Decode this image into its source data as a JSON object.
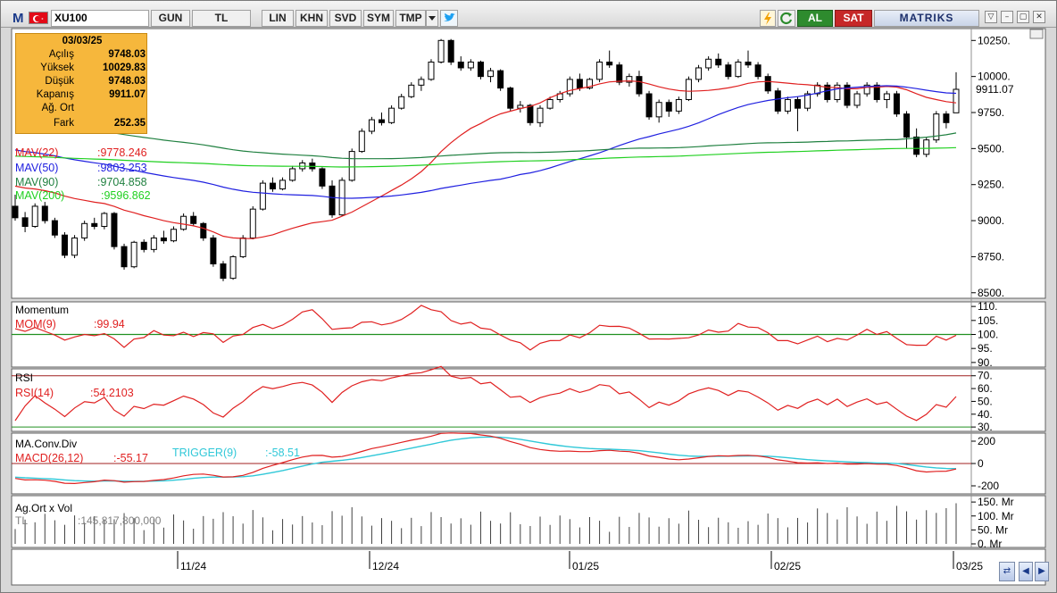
{
  "app": {
    "logo": "M",
    "symbol": "XU100"
  },
  "toolbar": {
    "period": "GUN",
    "currency": "TL",
    "scale": "LIN",
    "khn": "KHN",
    "svd": "SVD",
    "sym": "SYM",
    "tmp": "TMP",
    "buy": "AL",
    "sell": "SAT",
    "brand": "MATRIKS",
    "icons": [
      "flag-turkey-icon",
      "dropdown-arrow-icon",
      "twitter-icon",
      "lightning-icon",
      "refresh-icon",
      "window-menu-icon",
      "minimize-icon",
      "restore-icon",
      "close-icon"
    ]
  },
  "info_box": {
    "date": "03/03/25",
    "rows": [
      {
        "label": "Açılış",
        "value": "9748.03"
      },
      {
        "label": "Yüksek",
        "value": "10029.83"
      },
      {
        "label": "Düşük",
        "value": "9748.03"
      },
      {
        "label": "Kapanış",
        "value": "9911.07"
      },
      {
        "label": "Ağ. Ort",
        "value": ""
      },
      {
        "label": "Fark",
        "value": "252.35"
      }
    ]
  },
  "price_pane": {
    "indicators": [
      {
        "name": "MAV(22)",
        "value": ":9778.246",
        "color": "#e02020"
      },
      {
        "name": "MAV(50)",
        "value": ":9803.253",
        "color": "#2020e0"
      },
      {
        "name": "MAV(90)",
        "value": ":9704.858",
        "color": "#208040"
      },
      {
        "name": "MAV(200)",
        "value": ":9596.862",
        "color": "#20d020"
      }
    ],
    "y_ticks": [
      "10250.",
      "10000.",
      "9750.",
      "9500.",
      "9250.",
      "9000.",
      "8750.",
      "8500."
    ],
    "last_price_label": "9911.07"
  },
  "momentum_pane": {
    "title": "Momentum",
    "name": "MOM(9)",
    "value": ":99.94",
    "y_ticks": [
      "110.",
      "105.",
      "100.",
      "95.",
      "90."
    ]
  },
  "rsi_pane": {
    "title": "RSI",
    "name": "RSI(14)",
    "value": ":54.2103",
    "y_ticks": [
      "70.",
      "60.",
      "50.",
      "40.",
      "30."
    ]
  },
  "macd_pane": {
    "title": "MA.Conv.Div",
    "name": "MACD(26,12)",
    "value": ":-55.17",
    "trigger_name": "TRIGGER(9)",
    "trigger_value": ":-58.51",
    "y_ticks": [
      "200",
      "0",
      "-200"
    ]
  },
  "volume_pane": {
    "title": "Ag.Ort x Vol",
    "unit": "TL",
    "value": ":145,817,800,000",
    "y_ticks": [
      "150. Mr",
      "100. Mr",
      "50. Mr",
      "0. Mr"
    ]
  },
  "date_axis": [
    "11/24",
    "12/24",
    "01/25",
    "02/25",
    "03/25"
  ],
  "chart_data": {
    "type": "candlestick",
    "symbol": "XU100",
    "ylim": [
      8500,
      10300
    ],
    "dates_start": "early Oct 2024",
    "dates_end": "03/03/25",
    "candles_ohlc": [
      [
        9100,
        9180,
        9000,
        9020
      ],
      [
        9020,
        9060,
        8920,
        8960
      ],
      [
        8960,
        9120,
        8950,
        9100
      ],
      [
        9100,
        9130,
        8980,
        9000
      ],
      [
        9000,
        9020,
        8880,
        8900
      ],
      [
        8900,
        8920,
        8740,
        8760
      ],
      [
        8760,
        8900,
        8740,
        8880
      ],
      [
        8880,
        9000,
        8860,
        8980
      ],
      [
        8980,
        9020,
        8940,
        8960
      ],
      [
        8960,
        9060,
        8940,
        9050
      ],
      [
        9050,
        9060,
        8800,
        8820
      ],
      [
        8820,
        8840,
        8660,
        8680
      ],
      [
        8680,
        8860,
        8670,
        8850
      ],
      [
        8850,
        8870,
        8780,
        8800
      ],
      [
        8800,
        8900,
        8780,
        8880
      ],
      [
        8880,
        8930,
        8840,
        8860
      ],
      [
        8860,
        8960,
        8850,
        8940
      ],
      [
        8940,
        9050,
        8930,
        9030
      ],
      [
        9030,
        9060,
        8960,
        8980
      ],
      [
        8980,
        8990,
        8860,
        8880
      ],
      [
        8880,
        8900,
        8680,
        8700
      ],
      [
        8700,
        8720,
        8580,
        8600
      ],
      [
        8600,
        8760,
        8590,
        8750
      ],
      [
        8750,
        8900,
        8740,
        8880
      ],
      [
        8880,
        9100,
        8870,
        9080
      ],
      [
        9080,
        9280,
        9070,
        9260
      ],
      [
        9260,
        9300,
        9200,
        9220
      ],
      [
        9220,
        9300,
        9210,
        9280
      ],
      [
        9280,
        9380,
        9270,
        9360
      ],
      [
        9360,
        9420,
        9340,
        9400
      ],
      [
        9400,
        9430,
        9340,
        9360
      ],
      [
        9360,
        9370,
        9220,
        9240
      ],
      [
        9240,
        9280,
        9020,
        9040
      ],
      [
        9040,
        9300,
        9030,
        9280
      ],
      [
        9280,
        9500,
        9270,
        9480
      ],
      [
        9480,
        9640,
        9470,
        9620
      ],
      [
        9620,
        9720,
        9600,
        9700
      ],
      [
        9700,
        9750,
        9660,
        9680
      ],
      [
        9680,
        9800,
        9670,
        9780
      ],
      [
        9780,
        9880,
        9770,
        9860
      ],
      [
        9860,
        9960,
        9850,
        9940
      ],
      [
        9940,
        10000,
        9900,
        9980
      ],
      [
        9980,
        10120,
        9970,
        10100
      ],
      [
        10100,
        10260,
        10090,
        10250
      ],
      [
        10250,
        10260,
        10080,
        10100
      ],
      [
        10100,
        10140,
        10040,
        10060
      ],
      [
        10060,
        10120,
        10040,
        10100
      ],
      [
        10100,
        10110,
        9980,
        10000
      ],
      [
        10000,
        10060,
        9960,
        10040
      ],
      [
        10040,
        10050,
        9900,
        9920
      ],
      [
        9920,
        9930,
        9760,
        9780
      ],
      [
        9780,
        9830,
        9750,
        9800
      ],
      [
        9800,
        9810,
        9660,
        9680
      ],
      [
        9680,
        9800,
        9650,
        9780
      ],
      [
        9780,
        9860,
        9770,
        9840
      ],
      [
        9840,
        9900,
        9820,
        9880
      ],
      [
        9880,
        10000,
        9860,
        9980
      ],
      [
        9980,
        10020,
        9900,
        9920
      ],
      [
        9920,
        9990,
        9910,
        9980
      ],
      [
        9980,
        10120,
        9960,
        10100
      ],
      [
        10100,
        10180,
        10060,
        10080
      ],
      [
        10080,
        10100,
        9940,
        9960
      ],
      [
        9960,
        10020,
        9930,
        10000
      ],
      [
        10000,
        10040,
        9860,
        9880
      ],
      [
        9880,
        9900,
        9700,
        9720
      ],
      [
        9720,
        9840,
        9680,
        9820
      ],
      [
        9820,
        9840,
        9720,
        9760
      ],
      [
        9760,
        9860,
        9740,
        9840
      ],
      [
        9840,
        10000,
        9830,
        9980
      ],
      [
        9980,
        10080,
        9960,
        10060
      ],
      [
        10060,
        10140,
        10040,
        10120
      ],
      [
        10120,
        10160,
        10060,
        10080
      ],
      [
        10080,
        10100,
        9980,
        10000
      ],
      [
        10000,
        10120,
        9990,
        10100
      ],
      [
        10100,
        10180,
        10060,
        10080
      ],
      [
        10080,
        10100,
        9980,
        10000
      ],
      [
        10000,
        10020,
        9880,
        9900
      ],
      [
        9900,
        9920,
        9740,
        9760
      ],
      [
        9760,
        9860,
        9740,
        9840
      ],
      [
        9840,
        9860,
        9620,
        9780
      ],
      [
        9780,
        9900,
        9760,
        9880
      ],
      [
        9880,
        9960,
        9860,
        9940
      ],
      [
        9940,
        9960,
        9820,
        9840
      ],
      [
        9840,
        9960,
        9820,
        9940
      ],
      [
        9940,
        9960,
        9780,
        9800
      ],
      [
        9800,
        9900,
        9780,
        9880
      ],
      [
        9880,
        9960,
        9860,
        9940
      ],
      [
        9940,
        9960,
        9820,
        9840
      ],
      [
        9840,
        9900,
        9780,
        9880
      ],
      [
        9880,
        9900,
        9720,
        9740
      ],
      [
        9740,
        9760,
        9500,
        9580
      ],
      [
        9580,
        9640,
        9440,
        9460
      ],
      [
        9460,
        9580,
        9440,
        9560
      ],
      [
        9560,
        9760,
        9540,
        9740
      ],
      [
        9740,
        9760,
        9640,
        9680
      ],
      [
        9748.03,
        10029.83,
        9748.03,
        9911.07
      ]
    ],
    "series": [
      {
        "name": "MAV(22)",
        "last": 9778.246
      },
      {
        "name": "MAV(50)",
        "last": 9803.253
      },
      {
        "name": "MAV(90)",
        "last": 9704.858
      },
      {
        "name": "MAV(200)",
        "last": 9596.862
      },
      {
        "name": "MOM(9)",
        "last": 99.94
      },
      {
        "name": "RSI(14)",
        "last": 54.2103
      },
      {
        "name": "MACD(26,12)",
        "last": -55.17
      },
      {
        "name": "TRIGGER(9)",
        "last": -58.51
      }
    ],
    "volume_last": 145817800000
  }
}
